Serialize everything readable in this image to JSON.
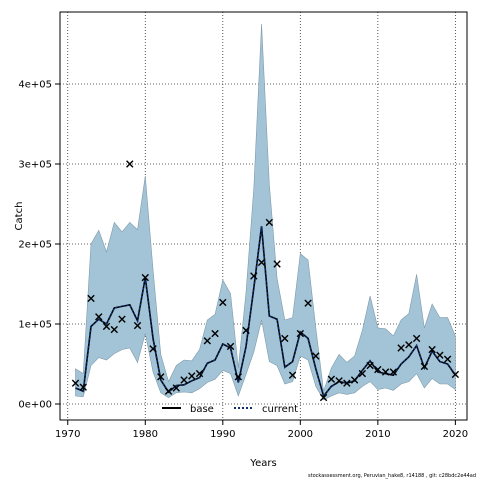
{
  "chart_data": {
    "type": "line",
    "xlabel": "Years",
    "ylabel": "Catch",
    "xlim": [
      1969.0,
      2021.5
    ],
    "ylim": [
      -20000,
      490000
    ],
    "x_ticks": [
      1970,
      1980,
      1990,
      2000,
      2010,
      2020
    ],
    "x_tick_labels": [
      "1970",
      "1980",
      "1990",
      "2000",
      "2010",
      "2020"
    ],
    "y_ticks": [
      0,
      100000,
      200000,
      300000,
      400000
    ],
    "y_tick_labels": [
      "0e+00",
      "1e+05",
      "2e+05",
      "3e+05",
      "4e+05"
    ],
    "grid": true,
    "legend_position": "bottom-center",
    "colors": {
      "band_fill": "#a2c4d6",
      "band_edge": "#7f9aab",
      "line": "#000000",
      "current": "#0d2d70",
      "grid": "#333333"
    },
    "band": {
      "x": [
        1971,
        1972,
        1973,
        1974,
        1975,
        1976,
        1977,
        1978,
        1979,
        1980,
        1981,
        1982,
        1983,
        1984,
        1985,
        1986,
        1987,
        1988,
        1989,
        1990,
        1991,
        1992,
        1993,
        1994,
        1995,
        1996,
        1997,
        1998,
        1999,
        2000,
        2001,
        2002,
        2003,
        2004,
        2005,
        2006,
        2007,
        2008,
        2009,
        2010,
        2011,
        2012,
        2013,
        2014,
        2015,
        2016,
        2017,
        2018,
        2019,
        2020
      ],
      "upper": [
        44000,
        38000,
        200000,
        217000,
        190000,
        227000,
        215000,
        227000,
        218000,
        285000,
        168000,
        62000,
        28000,
        48000,
        55000,
        54000,
        68000,
        105000,
        112000,
        155000,
        138000,
        45000,
        140000,
        270000,
        475000,
        275000,
        157000,
        105000,
        108000,
        188000,
        180000,
        95000,
        16000,
        45000,
        62000,
        52000,
        60000,
        92000,
        135000,
        95000,
        94000,
        85000,
        105000,
        113000,
        162000,
        95000,
        125000,
        108000,
        108000,
        85000
      ],
      "lower": [
        10000,
        9000,
        48000,
        58000,
        55000,
        63000,
        68000,
        70000,
        52000,
        88000,
        40000,
        14000,
        8000,
        14000,
        15000,
        14000,
        19000,
        27000,
        31000,
        42000,
        38000,
        10000,
        37000,
        65000,
        105000,
        53000,
        48000,
        25000,
        28000,
        60000,
        55000,
        22000,
        5000,
        10000,
        14000,
        12000,
        14000,
        22000,
        28000,
        18000,
        20000,
        17000,
        25000,
        28000,
        38000,
        20000,
        32000,
        25000,
        25000,
        18000
      ]
    },
    "series": [
      {
        "name": "base",
        "x": [
          1971,
          1972,
          1973,
          1974,
          1975,
          1976,
          1977,
          1978,
          1979,
          1980,
          1981,
          1982,
          1983,
          1984,
          1985,
          1986,
          1987,
          1988,
          1989,
          1990,
          1991,
          1992,
          1993,
          1994,
          1995,
          1996,
          1997,
          1998,
          1999,
          2000,
          2001,
          2002,
          2003,
          2004,
          2005,
          2006,
          2007,
          2008,
          2009,
          2010,
          2011,
          2012,
          2013,
          2014,
          2015,
          2016,
          2017,
          2018,
          2019,
          2020
        ],
        "values": [
          20000,
          16000,
          97000,
          106000,
          100000,
          120000,
          122000,
          124000,
          104000,
          158000,
          82000,
          30000,
          15000,
          23000,
          24000,
          29000,
          33000,
          51000,
          55000,
          75000,
          70000,
          27000,
          72000,
          145000,
          222000,
          110000,
          106000,
          46000,
          53000,
          90000,
          82000,
          44000,
          10000,
          22000,
          28000,
          26000,
          29000,
          42000,
          54000,
          40000,
          38000,
          36000,
          50000,
          59000,
          73000,
          45000,
          66000,
          53000,
          50000,
          36000
        ]
      },
      {
        "name": "current",
        "x": [
          1971,
          1972,
          1973,
          1974,
          1975,
          1976,
          1977,
          1978,
          1979,
          1980,
          1981,
          1982,
          1983,
          1984,
          1985,
          1986,
          1987,
          1988,
          1989,
          1990,
          1991,
          1992,
          1993,
          1994,
          1995,
          1996,
          1997,
          1998,
          1999,
          2000,
          2001,
          2002,
          2003,
          2004,
          2005,
          2006,
          2007,
          2008,
          2009,
          2010,
          2011,
          2012,
          2013,
          2014,
          2015,
          2016,
          2017,
          2018,
          2019,
          2020
        ],
        "values": [
          20000,
          16000,
          97000,
          106000,
          100000,
          120000,
          122000,
          124000,
          104000,
          158000,
          82000,
          30000,
          15000,
          23000,
          24000,
          29000,
          33000,
          51000,
          55000,
          75000,
          70000,
          27000,
          72000,
          145000,
          222000,
          110000,
          106000,
          46000,
          53000,
          90000,
          82000,
          44000,
          10000,
          22000,
          28000,
          26000,
          29000,
          42000,
          54000,
          40000,
          38000,
          36000,
          50000,
          59000,
          73000,
          45000,
          66000,
          53000,
          50000,
          36000
        ]
      }
    ],
    "observed": {
      "x": [
        1971,
        1972,
        1973,
        1974,
        1975,
        1976,
        1977,
        1978,
        1979,
        1980,
        1981,
        1982,
        1983,
        1984,
        1985,
        1986,
        1987,
        1988,
        1989,
        1990,
        1991,
        1992,
        1993,
        1994,
        1995,
        1996,
        1997,
        1998,
        1999,
        2000,
        2001,
        2002,
        2003,
        2004,
        2005,
        2006,
        2007,
        2008,
        2009,
        2010,
        2011,
        2012,
        2013,
        2014,
        2015,
        2016,
        2017,
        2018,
        2019,
        2020
      ],
      "values": [
        26000,
        21000,
        132000,
        109000,
        97000,
        93000,
        106000,
        300000,
        98000,
        158000,
        69000,
        34000,
        16000,
        20000,
        30000,
        35000,
        38000,
        79000,
        88000,
        127000,
        72000,
        34000,
        92000,
        160000,
        177000,
        227000,
        175000,
        82000,
        36000,
        88000,
        126000,
        60000,
        8000,
        31000,
        29000,
        26000,
        30000,
        38000,
        48000,
        43000,
        40000,
        40000,
        70000,
        74000,
        82000,
        47000,
        68000,
        61000,
        56000,
        37000
      ]
    }
  },
  "footer": {
    "note": "stockassessment.org, Peruvian_hake8, r14188 , git: c28bdc2e44ad"
  }
}
